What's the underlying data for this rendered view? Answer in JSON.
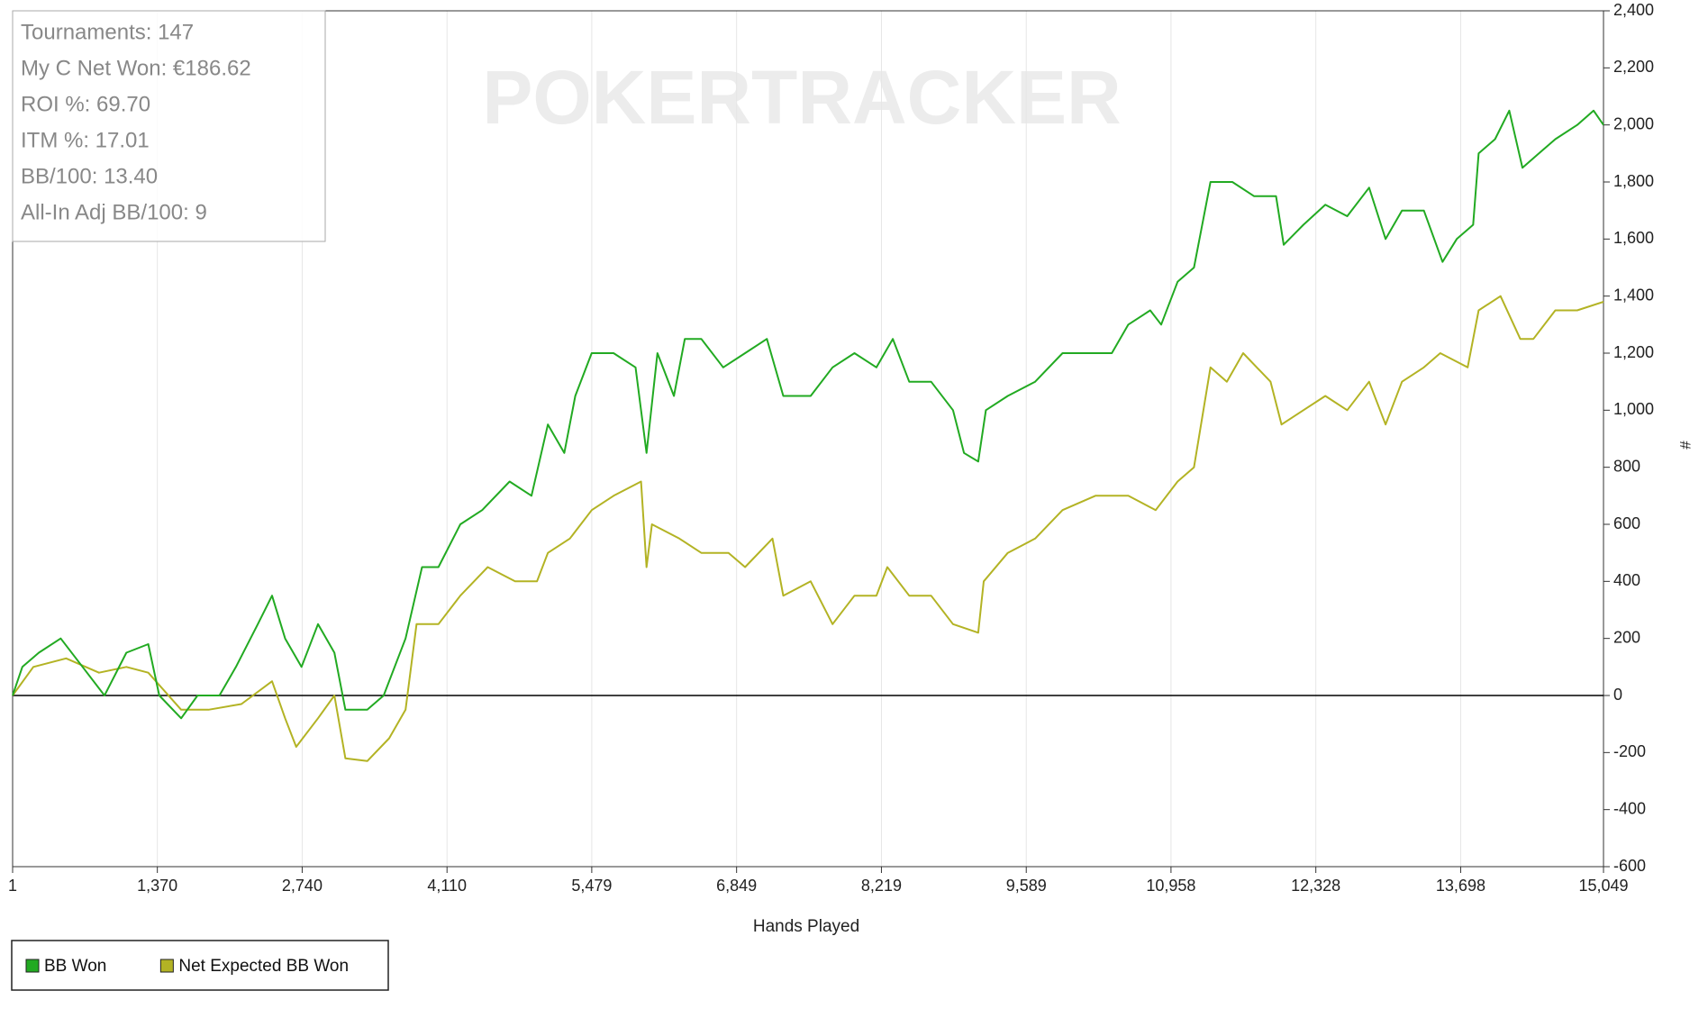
{
  "chart_data": {
    "type": "line",
    "watermark": "POKERTRACKER",
    "stats": [
      "Tournaments: 147",
      "My C Net Won: €186.62",
      "ROI %: 69.70",
      "ITM %: 17.01",
      "BB/100: 13.40",
      "All-In Adj BB/100: 9"
    ],
    "x_label": "Hands Played",
    "y_label": "#",
    "xlim": [
      1,
      15049
    ],
    "xticks": [
      1,
      {
        "value": 1370,
        "label": "1,370"
      },
      {
        "value": 2740,
        "label": "2,740"
      },
      {
        "value": 4110,
        "label": "4,110"
      },
      {
        "value": 5479,
        "label": "5,479"
      },
      {
        "value": 6849,
        "label": "6,849"
      },
      {
        "value": 8219,
        "label": "8,219"
      },
      {
        "value": 9589,
        "label": "9,589"
      },
      {
        "value": 10958,
        "label": "10,958"
      },
      {
        "value": 12328,
        "label": "12,328"
      },
      {
        "value": 13698,
        "label": "13,698"
      },
      {
        "value": 15049,
        "label": "15,049"
      }
    ],
    "ylim": [
      -600,
      2400
    ],
    "yticks": [
      -600,
      -400,
      -200,
      0,
      200,
      400,
      600,
      800,
      {
        "value": 1000,
        "label": "1,000"
      },
      {
        "value": 1200,
        "label": "1,200"
      },
      {
        "value": 1400,
        "label": "1,400"
      },
      {
        "value": 1600,
        "label": "1,600"
      },
      {
        "value": 1800,
        "label": "1,800"
      },
      {
        "value": 2000,
        "label": "2,000"
      },
      {
        "value": 2200,
        "label": "2,200"
      },
      {
        "value": 2400,
        "label": "2,400"
      }
    ],
    "grid": "x",
    "legend": "bottom-left",
    "series": [
      {
        "name": "BB Won",
        "color": "#22aa22",
        "x": [
          1,
          93,
          249,
          456,
          663,
          870,
          1077,
          1284,
          1388,
          1595,
          1750,
          1957,
          2113,
          2320,
          2455,
          2579,
          2734,
          2890,
          3045,
          3149,
          3356,
          3511,
          3718,
          3874,
          4029,
          4236,
          4443,
          4702,
          4909,
          5064,
          5219,
          5323,
          5478,
          5685,
          5893,
          5997,
          6100,
          6256,
          6359,
          6515,
          6722,
          6929,
          7136,
          7291,
          7550,
          7757,
          7964,
          8172,
          8327,
          8482,
          8689,
          8896,
          9000,
          9135,
          9207,
          9414,
          9673,
          9932,
          10140,
          10398,
          10554,
          10761,
          10865,
          11020,
          11175,
          11331,
          11538,
          11745,
          11952,
          12024,
          12211,
          12418,
          12625,
          12832,
          12988,
          13143,
          13350,
          13526,
          13661,
          13816,
          13868,
          14023,
          14158,
          14282,
          14438,
          14593,
          14800,
          14955,
          15049
        ],
        "values": [
          0,
          100,
          150,
          200,
          100,
          0,
          150,
          180,
          0,
          -80,
          0,
          0,
          100,
          250,
          350,
          200,
          100,
          250,
          150,
          -50,
          -50,
          0,
          200,
          450,
          450,
          600,
          650,
          750,
          700,
          950,
          850,
          1050,
          1200,
          1200,
          1150,
          850,
          1200,
          1050,
          1250,
          1250,
          1150,
          1200,
          1250,
          1050,
          1050,
          1150,
          1200,
          1150,
          1250,
          1100,
          1100,
          1000,
          850,
          820,
          1000,
          1050,
          1100,
          1200,
          1200,
          1200,
          1300,
          1350,
          1300,
          1450,
          1500,
          1800,
          1800,
          1750,
          1750,
          1580,
          1650,
          1720,
          1680,
          1780,
          1600,
          1700,
          1700,
          1520,
          1600,
          1650,
          1900,
          1950,
          2050,
          1850,
          1900,
          1950,
          2000,
          2050,
          2000
        ]
      },
      {
        "name": "Net Expected BB Won",
        "color": "#b3b324",
        "x": [
          1,
          197,
          507,
          818,
          1077,
          1284,
          1595,
          1854,
          2165,
          2455,
          2579,
          2683,
          2890,
          3045,
          3149,
          3356,
          3563,
          3718,
          3822,
          4029,
          4236,
          4495,
          4754,
          4961,
          5064,
          5272,
          5479,
          5686,
          5945,
          5997,
          6048,
          6307,
          6515,
          6773,
          6929,
          7188,
          7291,
          7550,
          7757,
          7964,
          8172,
          8275,
          8482,
          8689,
          8896,
          9135,
          9187,
          9414,
          9673,
          9932,
          10243,
          10554,
          10813,
          11020,
          11175,
          11331,
          11486,
          11641,
          11900,
          12004,
          12211,
          12418,
          12625,
          12832,
          12988,
          13143,
          13350,
          13505,
          13764,
          13868,
          14075,
          14262,
          14386,
          14593,
          14800,
          15049
        ],
        "values": [
          0,
          100,
          130,
          80,
          100,
          80,
          -50,
          -50,
          -30,
          50,
          -80,
          -180,
          -80,
          0,
          -220,
          -230,
          -150,
          -50,
          250,
          250,
          350,
          450,
          400,
          400,
          500,
          550,
          650,
          700,
          750,
          450,
          600,
          550,
          500,
          500,
          450,
          550,
          350,
          400,
          250,
          350,
          350,
          450,
          350,
          350,
          250,
          220,
          400,
          500,
          550,
          650,
          700,
          700,
          650,
          750,
          800,
          1150,
          1100,
          1200,
          1100,
          950,
          1000,
          1050,
          1000,
          1100,
          950,
          1100,
          1150,
          1200,
          1150,
          1350,
          1400,
          1250,
          1250,
          1350,
          1350,
          1380
        ]
      }
    ]
  }
}
